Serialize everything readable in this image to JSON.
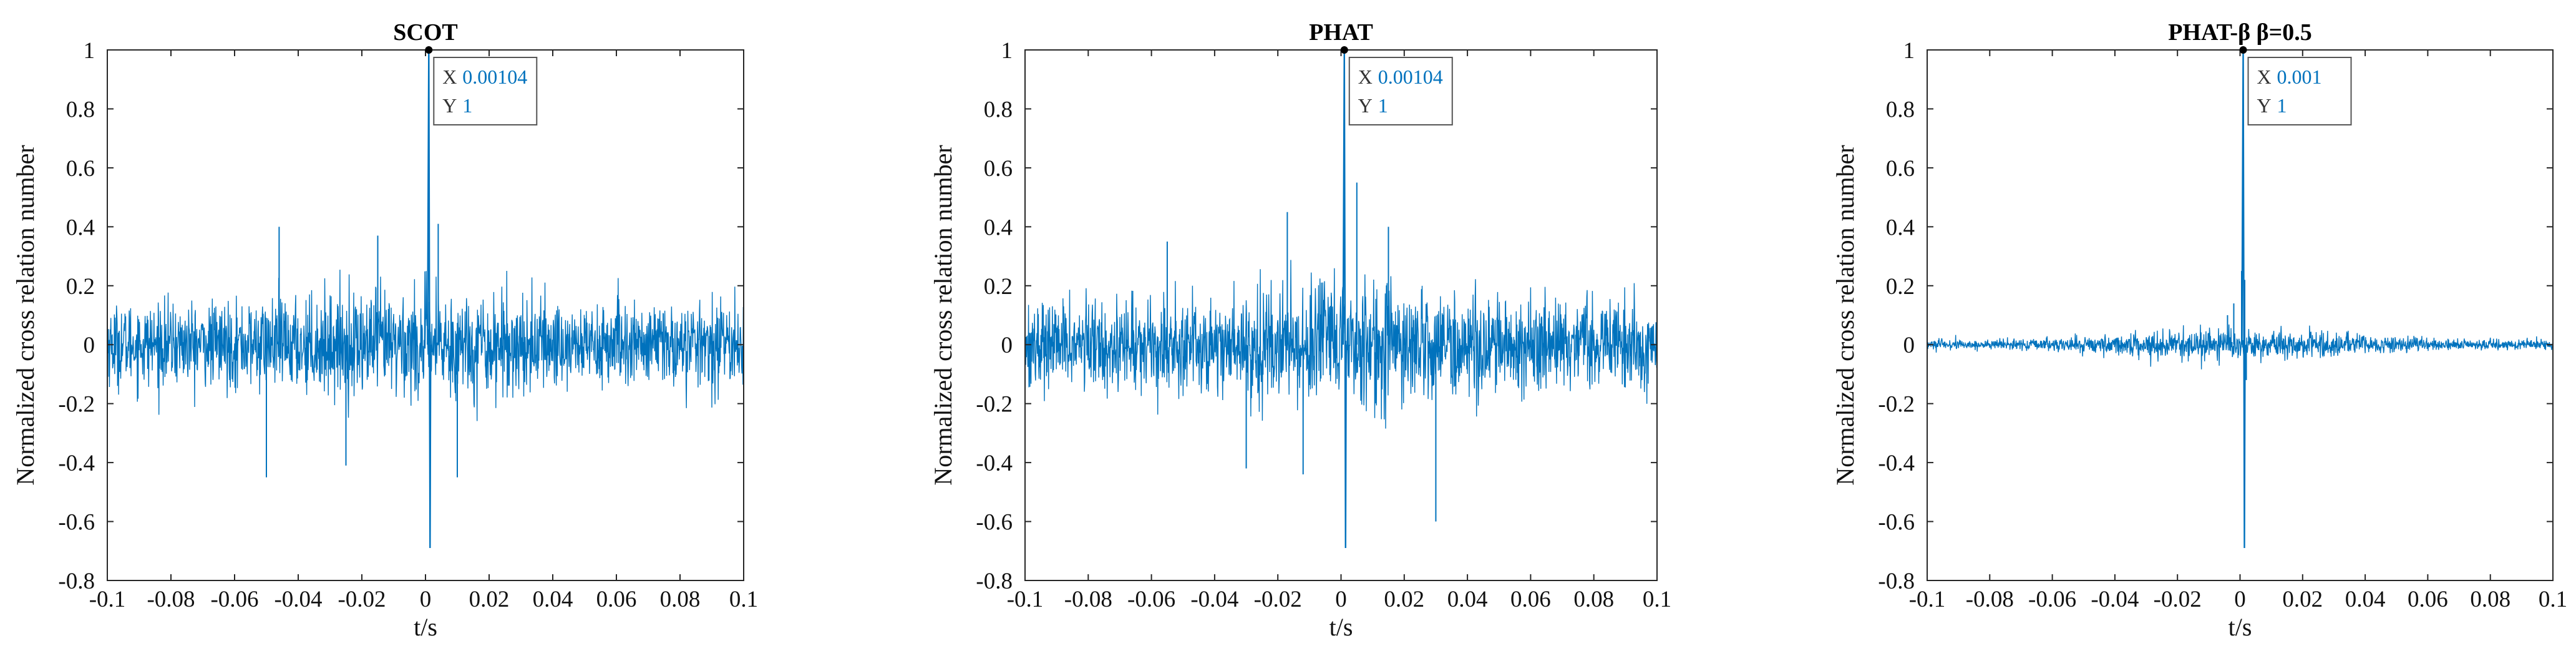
{
  "chart_data": [
    {
      "type": "line",
      "title": "SCOT",
      "xlabel": "t/s",
      "ylabel": "Normalized cross relation number",
      "xlim": [
        -0.1,
        0.1
      ],
      "ylim": [
        -0.8,
        1
      ],
      "xticks": [
        "-0.1",
        "-0.08",
        "-0.06",
        "-0.04",
        "-0.02",
        "0",
        "0.02",
        "0.04",
        "0.06",
        "0.08",
        "0.1"
      ],
      "yticks": [
        "-0.8",
        "-0.6",
        "-0.4",
        "-0.2",
        "0",
        "0.2",
        "0.4",
        "0.6",
        "0.8",
        "1"
      ],
      "series_color": "#0072BD",
      "noise": {
        "center_amp": 0.22,
        "edge_amp": 0.16
      },
      "peak": {
        "x": 0.00104,
        "y": 1,
        "min": -0.69
      },
      "spikes": [
        [
          -0.046,
          0.4
        ],
        [
          -0.05,
          -0.45
        ],
        [
          -0.025,
          -0.41
        ],
        [
          0.004,
          0.41
        ],
        [
          0.01,
          -0.45
        ],
        [
          -0.015,
          0.37
        ]
      ],
      "datatip": {
        "x_label": "X",
        "x_value": "0.00104",
        "y_label": "Y",
        "y_value": "1"
      }
    },
    {
      "type": "line",
      "title": "PHAT",
      "xlabel": "t/s",
      "ylabel": "Normalized cross relation number",
      "xlim": [
        -0.1,
        0.1
      ],
      "ylim": [
        -0.8,
        1
      ],
      "xticks": [
        "-0.1",
        "-0.08",
        "-0.06",
        "-0.04",
        "-0.02",
        "0",
        "0.02",
        "0.04",
        "0.06",
        "0.08",
        "0.1"
      ],
      "yticks": [
        "-0.8",
        "-0.6",
        "-0.4",
        "-0.2",
        "0",
        "0.2",
        "0.4",
        "0.6",
        "0.8",
        "1"
      ],
      "series_color": "#0072BD",
      "noise": {
        "center_amp": 0.24,
        "edge_amp": 0.17
      },
      "peak": {
        "x": 0.00104,
        "y": 1,
        "min": -0.69
      },
      "spikes": [
        [
          -0.017,
          0.45
        ],
        [
          0.03,
          -0.6
        ],
        [
          -0.03,
          -0.42
        ],
        [
          0.005,
          0.55
        ],
        [
          0.015,
          0.4
        ],
        [
          -0.012,
          -0.44
        ],
        [
          -0.055,
          0.35
        ]
      ],
      "datatip": {
        "x_label": "X",
        "x_value": "0.00104",
        "y_label": "Y",
        "y_value": "1"
      }
    },
    {
      "type": "line",
      "title": "PHAT-β   β=0.5",
      "xlabel": "t/s",
      "ylabel": "Normalized cross relation number",
      "xlim": [
        -0.1,
        0.1
      ],
      "ylim": [
        -0.8,
        1
      ],
      "xticks": [
        "-0.1",
        "-0.08",
        "-0.06",
        "-0.04",
        "-0.02",
        "0",
        "0.02",
        "0.04",
        "0.06",
        "0.08",
        "0.1"
      ],
      "yticks": [
        "-0.8",
        "-0.6",
        "-0.4",
        "-0.2",
        "0",
        "0.2",
        "0.4",
        "0.6",
        "0.8",
        "1"
      ],
      "series_color": "#0072BD",
      "noise": {
        "center_amp": 0.06,
        "edge_amp": 0.02
      },
      "peak": {
        "x": 0.001,
        "y": 1,
        "min": -0.69
      },
      "spikes": [
        [
          0.0005,
          0.25
        ],
        [
          0.0015,
          0.22
        ],
        [
          -0.002,
          0.14
        ],
        [
          0.002,
          -0.12
        ],
        [
          -0.004,
          0.1
        ]
      ],
      "datatip": {
        "x_label": "X",
        "x_value": "0.001",
        "y_label": "Y",
        "y_value": "1"
      }
    }
  ]
}
